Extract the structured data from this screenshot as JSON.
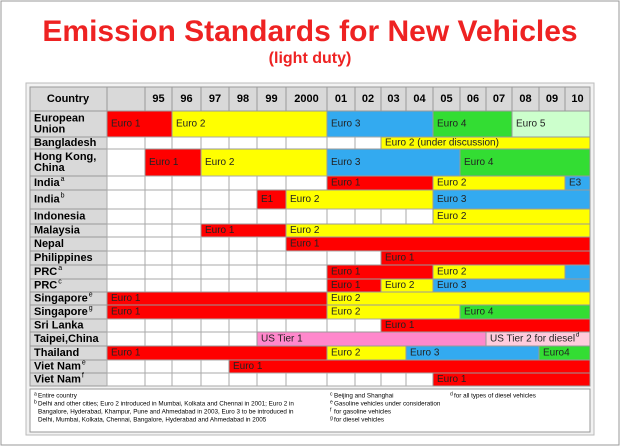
{
  "header": {
    "title": "Emission Standards for New Vehicles",
    "subtitle": "(light duty)"
  },
  "table": {
    "corner": "Country",
    "years": [
      null,
      "95",
      "96",
      "97",
      "98",
      "99",
      "2000",
      "01",
      "02",
      "03",
      "04",
      "05",
      "06",
      "07",
      "08",
      "09",
      "10"
    ],
    "rows": [
      {
        "name_lines": [
          "European",
          "Union"
        ],
        "segments": [
          {
            "from": null,
            "to": "95",
            "label": "Euro 1",
            "color": "#ff0000"
          },
          {
            "from": "96",
            "to": "2000",
            "label": "Euro 2",
            "color": "#ffff00"
          },
          {
            "from": "01",
            "to": "04",
            "label": "Euro 3",
            "color": "#33aaf0"
          },
          {
            "from": "05",
            "to": "07",
            "label": "Euro 4",
            "color": "#33dd33"
          },
          {
            "from": "08",
            "to": "10",
            "label": "Euro 5",
            "color": "#ccffcc"
          }
        ]
      },
      {
        "name_lines": [
          "Bangladesh"
        ],
        "segments": [
          {
            "from": "03",
            "to": "10",
            "label": "Euro 2 (under discussion)",
            "color": "#ffff00"
          }
        ]
      },
      {
        "name_lines": [
          "Hong Kong,",
          "China"
        ],
        "segments": [
          {
            "from": "95",
            "to": "96",
            "label": "Euro 1",
            "color": "#ff0000"
          },
          {
            "from": "97",
            "to": "2000",
            "label": "Euro 2",
            "color": "#ffff00"
          },
          {
            "from": "01",
            "to": "05",
            "label": "Euro 3",
            "color": "#33aaf0"
          },
          {
            "from": "06",
            "to": "10",
            "label": "Euro 4",
            "color": "#33dd33"
          }
        ]
      },
      {
        "name_lines": [
          "India"
        ],
        "sup": "a",
        "segments": [
          {
            "from": "01",
            "to": "04",
            "label": "Euro 1",
            "color": "#ff0000"
          },
          {
            "from": "05",
            "to": "09",
            "label": "Euro 2",
            "color": "#ffff00"
          },
          {
            "from": "10",
            "to": "10",
            "label": "E3",
            "color": "#33aaf0"
          }
        ]
      },
      {
        "name_lines": [
          "India"
        ],
        "sup": "b",
        "segments": [
          {
            "from": "99",
            "to": "99",
            "label": "E1",
            "color": "#ff0000"
          },
          {
            "from": "2000",
            "to": "04",
            "label": "Euro 2",
            "color": "#ffff00"
          },
          {
            "from": "05",
            "to": "10",
            "label": "Euro 3",
            "color": "#33aaf0"
          }
        ]
      },
      {
        "name_lines": [
          "Indonesia"
        ],
        "segments": [
          {
            "from": "05",
            "to": "10",
            "label": "Euro 2",
            "color": "#ffff00"
          }
        ]
      },
      {
        "name_lines": [
          "Malaysia"
        ],
        "segments": [
          {
            "from": "97",
            "to": "99",
            "label": "Euro 1",
            "color": "#ff0000"
          },
          {
            "from": "2000",
            "to": "10",
            "label": "Euro 2",
            "color": "#ffff00"
          }
        ]
      },
      {
        "name_lines": [
          "Nepal"
        ],
        "segments": [
          {
            "from": "2000",
            "to": "10",
            "label": "Euro 1",
            "color": "#ff0000"
          }
        ]
      },
      {
        "name_lines": [
          "Philippines"
        ],
        "segments": [
          {
            "from": "03",
            "to": "10",
            "label": "Euro 1",
            "color": "#ff0000"
          }
        ]
      },
      {
        "name_lines": [
          "PRC"
        ],
        "sup": "a",
        "segments": [
          {
            "from": "01",
            "to": "04",
            "label": "Euro 1",
            "color": "#ff0000"
          },
          {
            "from": "05",
            "to": "09",
            "label": "Euro 2",
            "color": "#ffff00"
          },
          {
            "from": "10",
            "to": "10",
            "color": "#33aaf0"
          }
        ]
      },
      {
        "name_lines": [
          "PRC"
        ],
        "sup": "c",
        "segments": [
          {
            "from": "01",
            "to": "02",
            "label": "Euro 1",
            "color": "#ff0000"
          },
          {
            "from": "03",
            "to": "04",
            "label": "Euro 2",
            "color": "#ffff00"
          },
          {
            "from": "05",
            "to": "10",
            "label": "Euro 3",
            "color": "#33aaf0"
          }
        ]
      },
      {
        "name_lines": [
          "Singapore"
        ],
        "sup": "e",
        "segments": [
          {
            "from": null,
            "to": "2000",
            "label": "Euro 1",
            "color": "#ff0000"
          },
          {
            "from": "01",
            "to": "10",
            "label": "Euro 2",
            "color": "#ffff00"
          }
        ]
      },
      {
        "name_lines": [
          "Singapore"
        ],
        "sup": "g",
        "segments": [
          {
            "from": null,
            "to": "2000",
            "label": "Euro 1",
            "color": "#ff0000"
          },
          {
            "from": "01",
            "to": "05",
            "label": "Euro 2",
            "color": "#ffff00"
          },
          {
            "from": "06",
            "to": "10",
            "label": "Euro 4",
            "color": "#33dd33"
          }
        ]
      },
      {
        "name_lines": [
          "Sri Lanka"
        ],
        "segments": [
          {
            "from": "03",
            "to": "10",
            "label": "Euro 1",
            "color": "#ff0000"
          }
        ]
      },
      {
        "name_lines": [
          "Taipei,China"
        ],
        "segments": [
          {
            "from": "99",
            "to": "06",
            "label": "US Tier 1",
            "color": "#ff88cc"
          },
          {
            "from": "07",
            "to": "10",
            "label": "US Tier 2 for diesel",
            "sup": "d",
            "color": "#ffccdd"
          }
        ]
      },
      {
        "name_lines": [
          "Thailand"
        ],
        "segments": [
          {
            "from": null,
            "to": "2000",
            "label": "Euro 1",
            "color": "#ff0000"
          },
          {
            "from": "01",
            "to": "03",
            "label": "Euro 2",
            "color": "#ffff00"
          },
          {
            "from": "04",
            "to": "08",
            "label": "Euro 3",
            "color": "#33aaf0"
          },
          {
            "from": "09",
            "to": "10",
            "label": "Euro4",
            "color": "#33dd33"
          }
        ]
      },
      {
        "name_lines": [
          "Viet Nam"
        ],
        "sup": "e",
        "segments": [
          {
            "from": "98",
            "to": "10",
            "label": "Euro 1",
            "color": "#ff0000"
          }
        ]
      },
      {
        "name_lines": [
          "Viet Nam"
        ],
        "sup": "f",
        "segments": [
          {
            "from": "05",
            "to": "10",
            "label": "Euro 1",
            "color": "#ff0000"
          }
        ]
      }
    ]
  },
  "footnotes": {
    "left": [
      {
        "mark": "a",
        "lines": [
          "Entire country"
        ]
      },
      {
        "mark": "b",
        "lines": [
          "Delhi and other cities; Euro 2 introduced in Mumbai, Kolkata and Chennai in 2001; Euro 2 in",
          "Bangalore, Hyderabad, Khampur, Pune and Ahmedabad in 2003, Euro 3 to be introduced in",
          "Delhi, Mumbai, Kolkata, Chennai, Bangalore, Hyderabad and Ahmedabad in 2005"
        ]
      }
    ],
    "middle": [
      {
        "mark": "c",
        "lines": [
          "Beijing and Shanghai"
        ]
      },
      {
        "mark": "e",
        "lines": [
          "Gasoline vehicles under consideration"
        ]
      },
      {
        "mark": "f",
        "lines": [
          "for gasoline vehicles"
        ]
      },
      {
        "mark": "g",
        "lines": [
          "for diesel vehicles"
        ]
      }
    ],
    "right": [
      {
        "mark": "d",
        "lines": [
          "for all types of diesel vehicles"
        ]
      }
    ]
  }
}
